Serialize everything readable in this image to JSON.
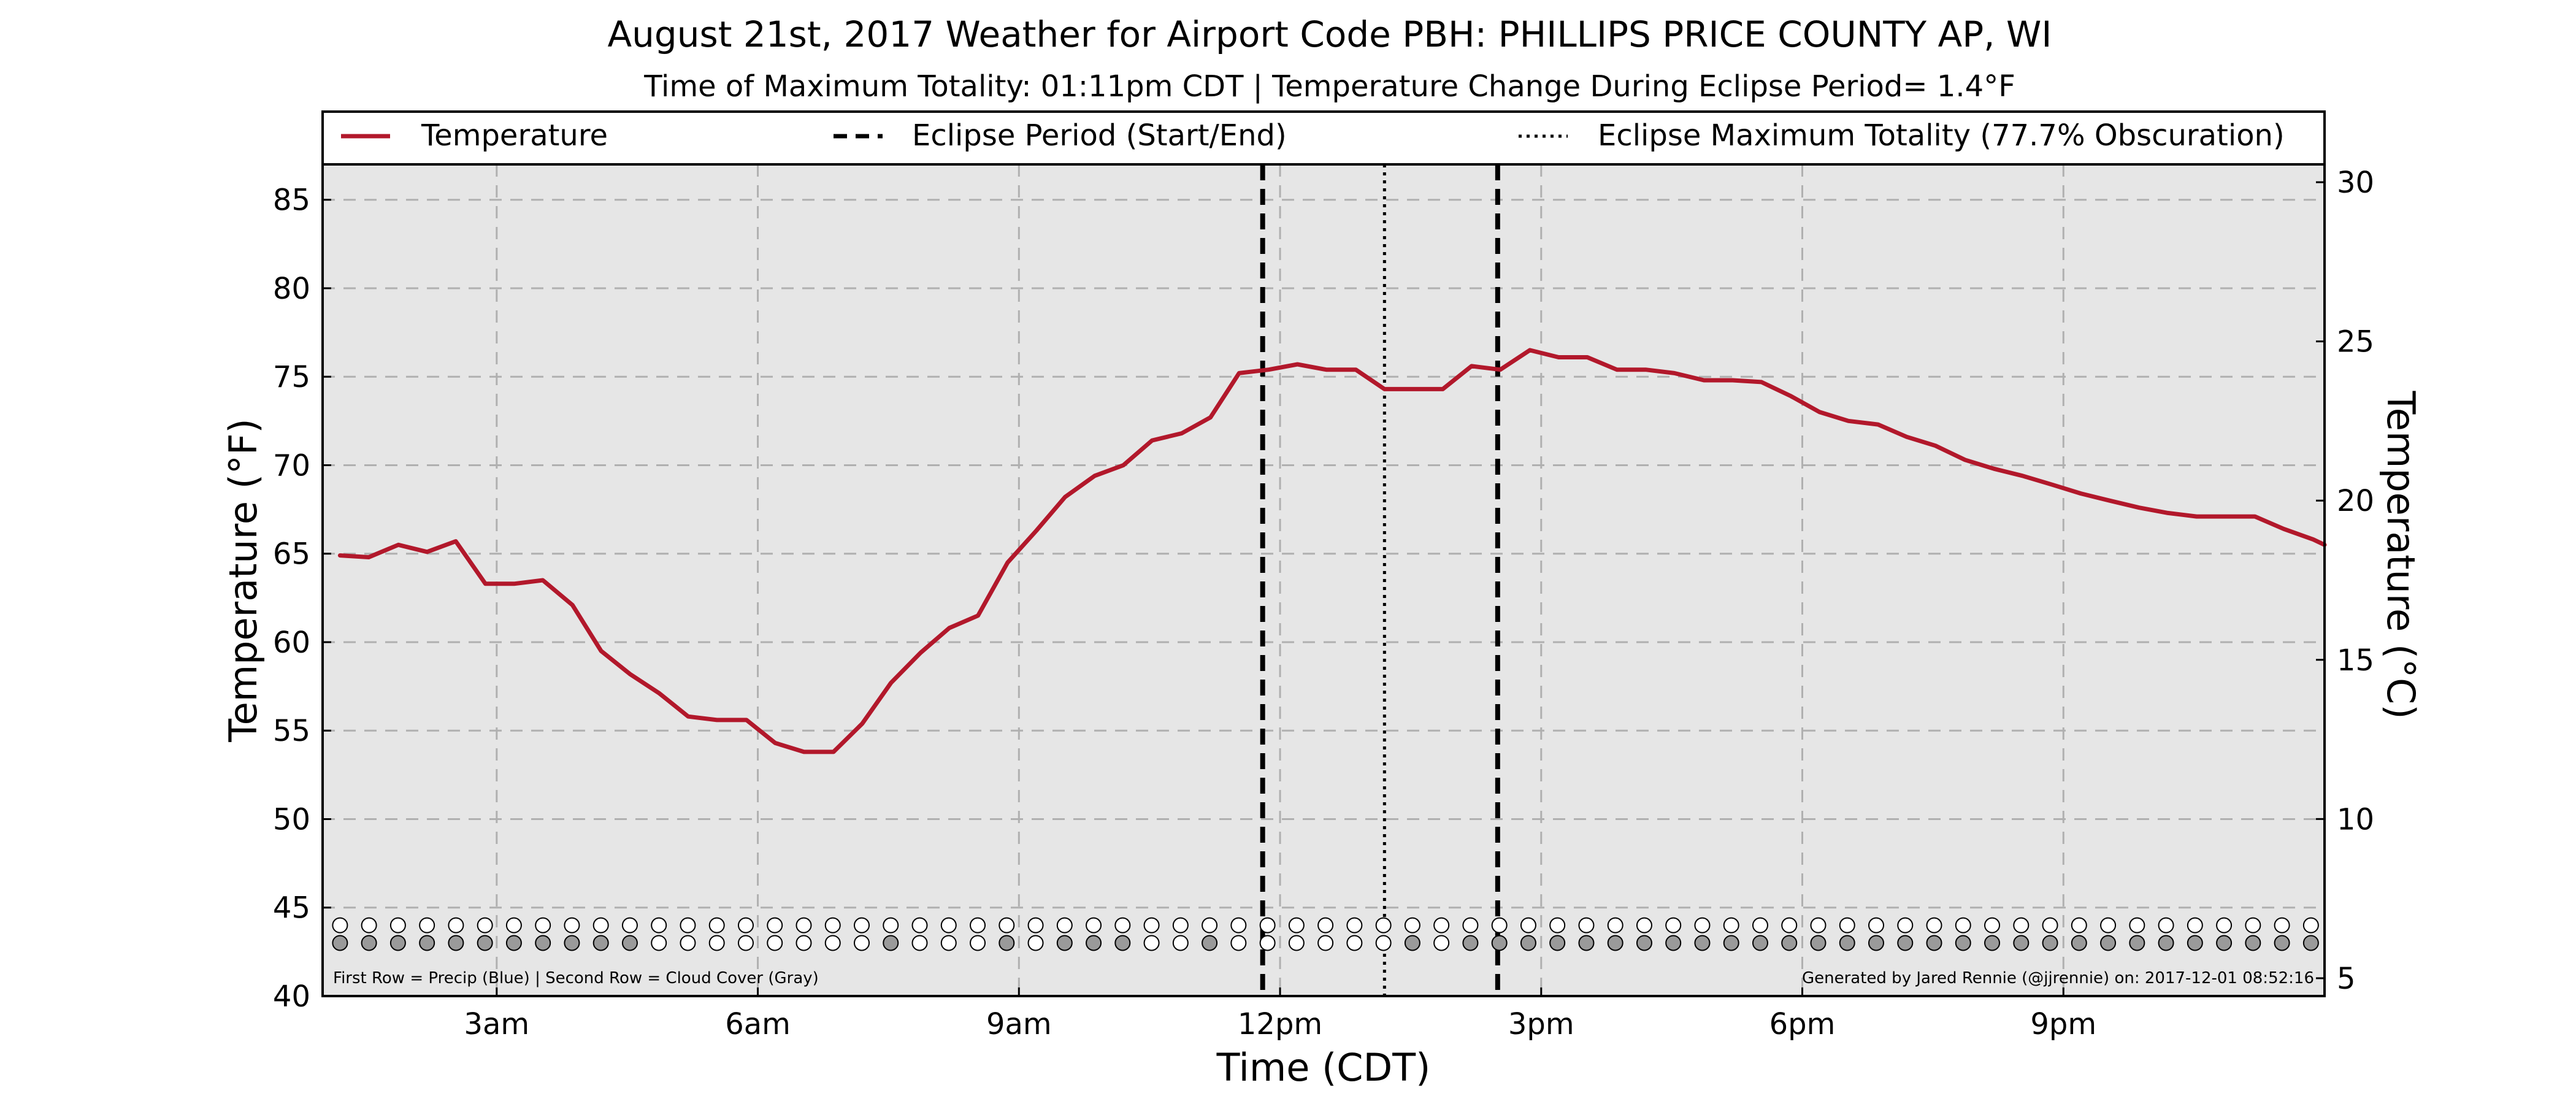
{
  "chart_data": {
    "type": "line",
    "title": "August 21st, 2017 Weather for Airport Code PBH: PHILLIPS PRICE COUNTY AP, WI",
    "subtitle": "Time of Maximum Totality: 01:11pm CDT | Temperature Change During Eclipse Period= 1.4$^\\circ$F",
    "subtitle_text": "Time of Maximum Totality: 01:11pm CDT | Temperature Change During Eclipse Period= 1.4°F",
    "xlabel": "Time (CDT)",
    "ylabel_left": "Temperature ($^\\circ$F)",
    "ylabel_left_text": "Temperature (°F)",
    "ylabel_right_text": "Temperature (°C)",
    "xlim": [
      1.0,
      24.0
    ],
    "ylim": [
      40,
      87
    ],
    "ylim_right": [
      4.44,
      30.56
    ],
    "xticks": [
      {
        "x": 3,
        "label": "3am"
      },
      {
        "x": 6,
        "label": "6am"
      },
      {
        "x": 9,
        "label": "9am"
      },
      {
        "x": 12,
        "label": "12pm"
      },
      {
        "x": 15,
        "label": "3pm"
      },
      {
        "x": 18,
        "label": "6pm"
      },
      {
        "x": 21,
        "label": "9pm"
      }
    ],
    "yticks_left": [
      40,
      45,
      50,
      55,
      60,
      65,
      70,
      75,
      80,
      85
    ],
    "yticks_right": [
      5,
      10,
      15,
      20,
      25,
      30
    ],
    "grid": true,
    "legend_placement": "top",
    "legend": [
      {
        "label": "Temperature",
        "style": "solid",
        "color": "#b2182b"
      },
      {
        "label": "Eclipse Period (Start/End)",
        "style": "dashed",
        "color": "#000000"
      },
      {
        "label": "Eclipse Maximum Totality (77.7% Obscuration)",
        "style": "dotted",
        "color": "#000000"
      }
    ],
    "series": [
      {
        "name": "Temperature",
        "color": "#b2182b",
        "x": [
          1.2,
          1.53,
          1.87,
          2.2,
          2.53,
          2.87,
          3.2,
          3.53,
          3.87,
          4.2,
          4.53,
          4.87,
          5.2,
          5.53,
          5.87,
          6.2,
          6.53,
          6.87,
          7.2,
          7.53,
          7.87,
          8.2,
          8.53,
          8.87,
          9.2,
          9.53,
          9.87,
          10.2,
          10.53,
          10.87,
          11.2,
          11.53,
          11.87,
          12.2,
          12.53,
          12.87,
          13.2,
          13.53,
          13.87,
          14.2,
          14.53,
          14.87,
          15.2,
          15.53,
          15.87,
          16.2,
          16.53,
          16.87,
          17.2,
          17.53,
          17.87,
          18.2,
          18.53,
          18.87,
          19.2,
          19.53,
          19.87,
          20.2,
          20.53,
          20.87,
          21.2,
          21.53,
          21.87,
          22.2,
          22.53,
          22.87,
          23.2,
          23.53,
          23.87,
          24.0
        ],
        "values": [
          64.9,
          64.8,
          65.5,
          65.1,
          65.7,
          63.3,
          63.3,
          63.5,
          62.1,
          59.5,
          58.2,
          57.1,
          55.8,
          55.6,
          55.6,
          54.3,
          53.8,
          53.8,
          55.4,
          57.7,
          59.4,
          60.8,
          61.5,
          64.5,
          66.3,
          68.2,
          69.4,
          70.0,
          71.4,
          71.8,
          72.7,
          75.2,
          75.4,
          75.7,
          75.4,
          75.4,
          74.3,
          74.3,
          74.3,
          75.6,
          75.4,
          76.5,
          76.1,
          76.1,
          75.4,
          75.4,
          75.2,
          74.8,
          74.8,
          74.7,
          73.9,
          73.0,
          72.5,
          72.3,
          71.6,
          71.1,
          70.3,
          69.8,
          69.4,
          68.9,
          68.4,
          68.0,
          67.6,
          67.3,
          67.1,
          67.1,
          67.1,
          66.4,
          65.8,
          65.5
        ]
      }
    ],
    "eclipse_period": {
      "start": 11.8,
      "end": 14.5
    },
    "eclipse_max": 13.2,
    "precip_row": {
      "y": 44.0,
      "color": "#ffffff",
      "x_start": 1.2,
      "x_step": 0.333,
      "count": 70
    },
    "cloud_row": {
      "y": 43.0,
      "x_start": 1.2,
      "x_step": 0.333,
      "count": 70,
      "colors": [
        "#9a9a9a",
        "#9a9a9a",
        "#9a9a9a",
        "#9a9a9a",
        "#9a9a9a",
        "#9a9a9a",
        "#9a9a9a",
        "#9a9a9a",
        "#9a9a9a",
        "#9a9a9a",
        "#9a9a9a",
        "#ffffff",
        "#ffffff",
        "#ffffff",
        "#ffffff",
        "#ffffff",
        "#ffffff",
        "#ffffff",
        "#ffffff",
        "#9a9a9a",
        "#ffffff",
        "#ffffff",
        "#ffffff",
        "#9a9a9a",
        "#ffffff",
        "#9a9a9a",
        "#9a9a9a",
        "#9a9a9a",
        "#ffffff",
        "#ffffff",
        "#9a9a9a",
        "#ffffff",
        "#ffffff",
        "#ffffff",
        "#ffffff",
        "#ffffff",
        "#ffffff",
        "#9a9a9a",
        "#ffffff",
        "#9a9a9a",
        "#9a9a9a",
        "#9a9a9a",
        "#9a9a9a",
        "#9a9a9a",
        "#9a9a9a",
        "#9a9a9a",
        "#9a9a9a",
        "#9a9a9a",
        "#9a9a9a",
        "#9a9a9a",
        "#9a9a9a",
        "#9a9a9a",
        "#9a9a9a",
        "#9a9a9a",
        "#9a9a9a",
        "#9a9a9a",
        "#9a9a9a",
        "#9a9a9a",
        "#9a9a9a",
        "#9a9a9a",
        "#9a9a9a",
        "#9a9a9a",
        "#9a9a9a",
        "#9a9a9a",
        "#9a9a9a",
        "#9a9a9a",
        "#9a9a9a",
        "#9a9a9a",
        "#9a9a9a",
        "#9a9a9a"
      ]
    },
    "footnote_left": "First Row = Precip (Blue) | Second Row = Cloud Cover (Gray)",
    "footnote_right": "Generated by Jared Rennie (@jjrennie) on: 2017-12-01 08:52:16",
    "colors": {
      "plot_background": "#e6e6e6",
      "grid": "#b0b0b0",
      "temperature_line": "#b2182b"
    }
  }
}
